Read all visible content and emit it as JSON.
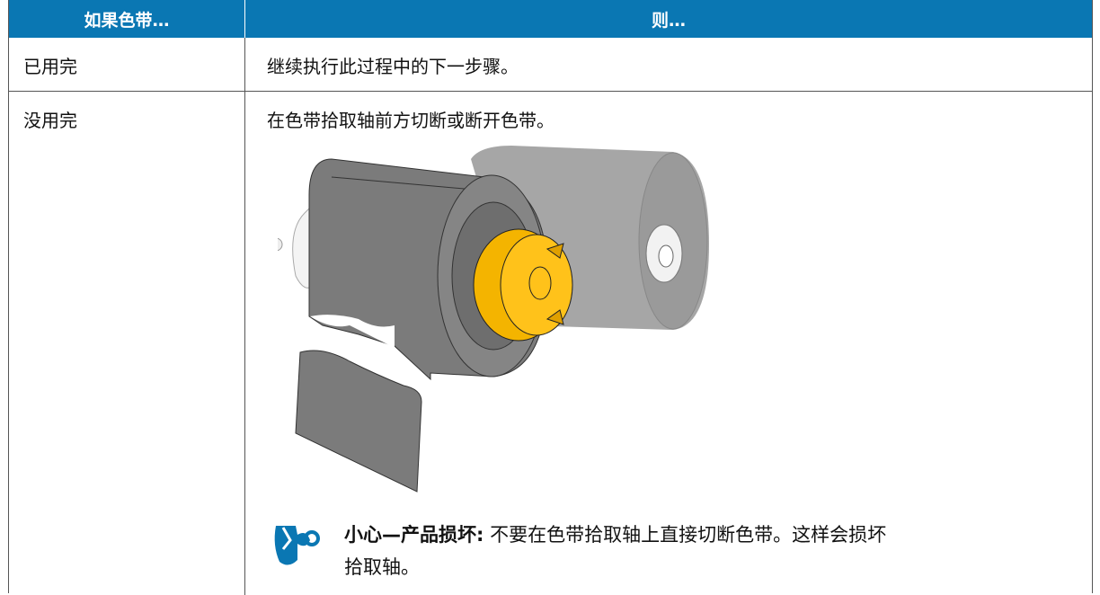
{
  "table": {
    "header": [
      "如果色带…",
      "则…"
    ],
    "rows": [
      [
        "已用完",
        "继续执行此过程中的下一步骤。"
      ],
      [
        "没用完",
        "在色带拾取轴前方切断或断开色带。"
      ]
    ]
  },
  "note": {
    "label": "小心—产品损坏:",
    "text": "不要在色带拾取轴上直接切断色带。这样会损坏拾取轴。"
  }
}
